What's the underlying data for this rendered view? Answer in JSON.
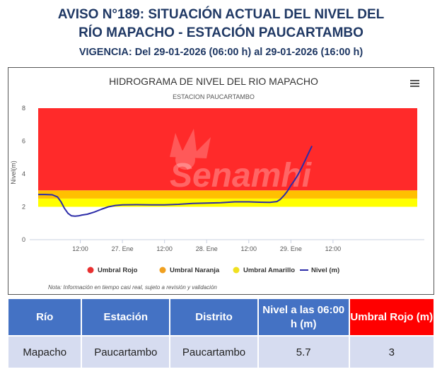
{
  "header": {
    "title_line1": "AVISO N°189: SITUACIÓN ACTUAL DEL NIVEL DEL",
    "title_line2": "RÍO MAPACHO - ESTACIÓN PAUCARTAMBO",
    "vigencia": "VIGENCIA: Del 29-01-2026 (06:00 h) al 29-01-2026 (16:00 h)"
  },
  "chart_data": {
    "type": "line",
    "title": "HIDROGRAMA DE NIVEL DEL RIO MAPACHO",
    "subtitle": "ESTACION PAUCARTAMBO",
    "ylabel": "Nivel(m)",
    "xlabel": "",
    "ylim": [
      0,
      8
    ],
    "yticks": [
      "0",
      "2",
      "4",
      "6",
      "8"
    ],
    "xlim": [
      0,
      108
    ],
    "xticks": [
      {
        "x": 12,
        "label": "12:00"
      },
      {
        "x": 24,
        "label": "27. Ene"
      },
      {
        "x": 36,
        "label": "12:00"
      },
      {
        "x": 48,
        "label": "28. Ene"
      },
      {
        "x": 60,
        "label": "12:00"
      },
      {
        "x": 72,
        "label": "29. Ene"
      },
      {
        "x": 84,
        "label": "12:00"
      }
    ],
    "bands": [
      {
        "name": "Umbral Amarillo",
        "from": 2.0,
        "to": 2.5,
        "color": "#ffff00"
      },
      {
        "name": "Umbral Naranja",
        "from": 2.5,
        "to": 3.0,
        "color": "#ffc000"
      },
      {
        "name": "Umbral Rojo",
        "from": 3.0,
        "to": 8.0,
        "color": "#ff2a2a"
      }
    ],
    "series": [
      {
        "name": "Nivel (m)",
        "color": "#2c2ca8",
        "x": [
          0,
          2,
          4,
          5.5,
          6.5,
          7.5,
          8.5,
          9.5,
          10.5,
          11.5,
          12.5,
          14,
          16,
          18,
          20,
          22,
          24,
          28,
          32,
          36,
          40,
          44,
          48,
          52,
          56,
          60,
          63,
          66,
          68,
          69,
          70,
          71,
          72,
          73,
          74,
          75,
          76,
          77,
          78
        ],
        "y": [
          2.75,
          2.75,
          2.73,
          2.6,
          2.3,
          1.9,
          1.6,
          1.45,
          1.43,
          1.45,
          1.5,
          1.55,
          1.68,
          1.85,
          2.0,
          2.08,
          2.12,
          2.13,
          2.12,
          2.12,
          2.15,
          2.2,
          2.23,
          2.25,
          2.3,
          2.3,
          2.28,
          2.27,
          2.32,
          2.45,
          2.68,
          2.95,
          3.3,
          3.6,
          3.95,
          4.35,
          4.8,
          5.25,
          5.7
        ]
      }
    ],
    "legend": [
      {
        "label": "Umbral Rojo",
        "color": "#e83030"
      },
      {
        "label": "Umbral Naranja",
        "color": "#f0a020"
      },
      {
        "label": "Umbral Amarillo",
        "color": "#f0e020"
      },
      {
        "label": "Nivel (m)",
        "color": "#2c2ca8"
      }
    ],
    "legend_position": "bottom",
    "grid": false,
    "watermark": "Senamhi",
    "note": "Nota: Información en tiempo casi real, sujeto a revisión y validación"
  },
  "table": {
    "headers": [
      "Río",
      "Estación",
      "Distrito",
      "Nivel a las 06:00 h (m)",
      "Umbral Rojo (m)"
    ],
    "header_colors": [
      "#4472c4",
      "#4472c4",
      "#4472c4",
      "#4472c4",
      "#ff0000"
    ],
    "rows": [
      [
        "Mapacho",
        "Paucartambo",
        "Paucartambo",
        "5.7",
        "3"
      ]
    ]
  }
}
